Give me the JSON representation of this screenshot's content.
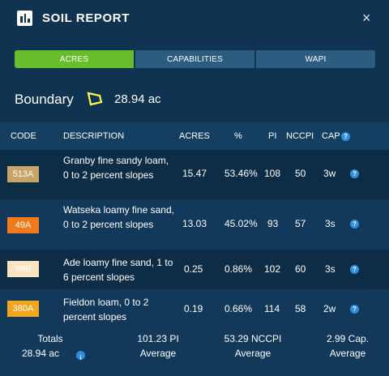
{
  "header": {
    "title": "SOIL REPORT",
    "icon": "bar-chart-icon",
    "close_label": "×"
  },
  "tabs": [
    {
      "label": "ACRES",
      "active": true
    },
    {
      "label": "CAPABILITIES",
      "active": false
    },
    {
      "label": "WAPI",
      "active": false
    }
  ],
  "boundary": {
    "label": "Boundary",
    "acres": "28.94 ac",
    "outline_color": "#ffff4a"
  },
  "columns": {
    "code": "CODE",
    "description": "DESCRIPTION",
    "acres": "ACRES",
    "percent": "%",
    "pi": "PI",
    "nccpi": "NCCPI",
    "cap": "CAP"
  },
  "rows": [
    {
      "code": "513A",
      "code_color": "#c9a468",
      "description": "Granby fine sandy loam, 0 to 2 percent slopes",
      "acres": "15.47",
      "percent": "53.46%",
      "pi": "108",
      "nccpi": "50",
      "cap": "3w"
    },
    {
      "code": "49A",
      "code_color": "#f07a1c",
      "description": "Watseka loamy fine sand, 0 to 2 percent slopes",
      "acres": "13.03",
      "percent": "45.02%",
      "pi": "93",
      "nccpi": "57",
      "cap": "3s"
    },
    {
      "code": "98B",
      "code_color": "#fde3c0",
      "description": "Ade loamy fine sand, 1 to 6 percent slopes",
      "acres": "0.25",
      "percent": "0.86%",
      "pi": "102",
      "nccpi": "60",
      "cap": "3s"
    },
    {
      "code": "380A",
      "code_color": "#f2a51e",
      "description": "Fieldon loam, 0 to 2 percent slopes",
      "acres": "0.19",
      "percent": "0.66%",
      "pi": "114",
      "nccpi": "58",
      "cap": "2w"
    }
  ],
  "totals": {
    "label": "Totals",
    "acres": "28.94 ac",
    "pi_value": "101.23 PI",
    "pi_label": "Average",
    "nccpi_value": "53.29 NCCPI",
    "nccpi_label": "Average",
    "cap_value": "2.99 Cap.",
    "cap_label": "Average"
  }
}
